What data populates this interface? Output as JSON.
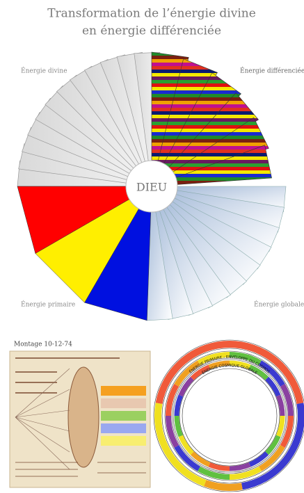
{
  "header": {
    "title_line1": "Transformation de l’énergie divine",
    "title_line2": "en énergie différenciée"
  },
  "wheel": {
    "center": "DIEU",
    "labels": {
      "divine": "Énergie divine",
      "differentiated": "Énergie différenciée",
      "primary": "Énergie primaire",
      "global": "Énergie globale"
    }
  },
  "montage": {
    "caption": "Montage 10-12-74"
  },
  "rings": {
    "outer": "ÉNERGIE PRIMAIRE - ENVELOPPE DU COSMOS",
    "middle": "ÉNERGIE COSMIQUE GLOBALE"
  }
}
